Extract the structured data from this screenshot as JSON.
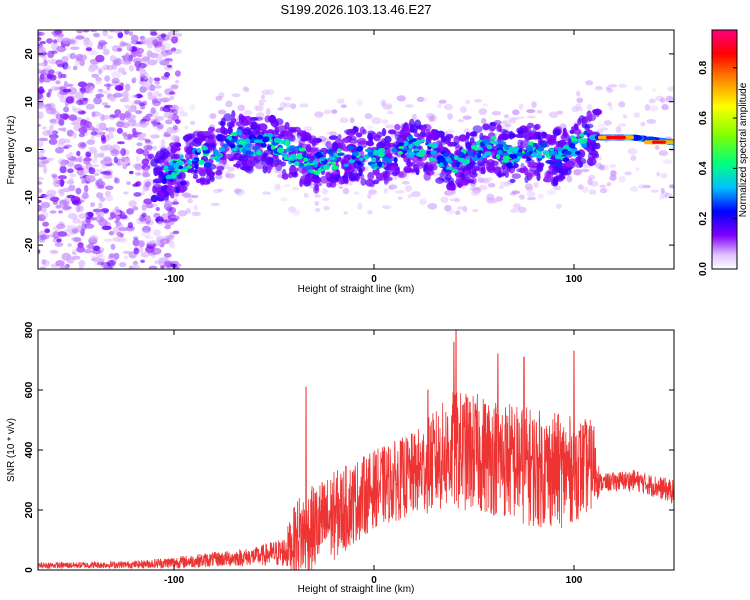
{
  "title": "S199.2026.103.13.46.E27",
  "chart_data": [
    {
      "type": "heatmap",
      "name": "spectrogram",
      "xlabel": "Height of straight line (km)",
      "ylabel": "Frequency (Hz)",
      "xlim": [
        -168,
        150
      ],
      "ylim": [
        -25,
        25
      ],
      "xticks": [
        -100,
        0,
        100
      ],
      "yticks": [
        -20,
        -10,
        0,
        10,
        20
      ],
      "colorbar": {
        "label": "Normalized spectral amplitude",
        "range": [
          0,
          0.95
        ],
        "ticks": [
          0.0,
          0.2,
          0.4,
          0.6,
          0.8
        ]
      },
      "ridge": [
        {
          "x": -108,
          "y": -6
        },
        {
          "x": -100,
          "y": -4
        },
        {
          "x": -90,
          "y": -2
        },
        {
          "x": -80,
          "y": -1
        },
        {
          "x": -72,
          "y": 2
        },
        {
          "x": -60,
          "y": 1
        },
        {
          "x": -50,
          "y": 1
        },
        {
          "x": -40,
          "y": -1
        },
        {
          "x": -30,
          "y": -3
        },
        {
          "x": -20,
          "y": -2
        },
        {
          "x": -10,
          "y": -1
        },
        {
          "x": 0,
          "y": -2
        },
        {
          "x": 10,
          "y": -1
        },
        {
          "x": 20,
          "y": 1
        },
        {
          "x": 30,
          "y": -1
        },
        {
          "x": 40,
          "y": -3
        },
        {
          "x": 50,
          "y": -1
        },
        {
          "x": 60,
          "y": 1
        },
        {
          "x": 70,
          "y": -2
        },
        {
          "x": 80,
          "y": 0
        },
        {
          "x": 90,
          "y": -2
        },
        {
          "x": 100,
          "y": 1
        },
        {
          "x": 110,
          "y": 2.5
        },
        {
          "x": 130,
          "y": 2.5
        },
        {
          "x": 150,
          "y": 1.5
        }
      ]
    },
    {
      "type": "line",
      "name": "snr",
      "xlabel": "Height of straight line (km)",
      "ylabel": "SNR (10 * v/v)",
      "xlim": [
        -168,
        150
      ],
      "ylim": [
        0,
        800
      ],
      "xticks": [
        -100,
        0,
        100
      ],
      "yticks": [
        0,
        200,
        400,
        600,
        800
      ],
      "color": "#ee3333",
      "envelope": [
        {
          "x": -168,
          "base": 15,
          "spread": 10
        },
        {
          "x": -120,
          "base": 18,
          "spread": 12
        },
        {
          "x": -100,
          "base": 25,
          "spread": 20
        },
        {
          "x": -80,
          "base": 35,
          "spread": 25
        },
        {
          "x": -60,
          "base": 45,
          "spread": 30
        },
        {
          "x": -45,
          "base": 60,
          "spread": 50
        },
        {
          "x": -38,
          "base": 110,
          "spread": 140
        },
        {
          "x": -20,
          "base": 180,
          "spread": 150
        },
        {
          "x": 0,
          "base": 270,
          "spread": 130
        },
        {
          "x": 20,
          "base": 320,
          "spread": 140
        },
        {
          "x": 40,
          "base": 400,
          "spread": 200
        },
        {
          "x": 60,
          "base": 380,
          "spread": 200
        },
        {
          "x": 80,
          "base": 340,
          "spread": 200
        },
        {
          "x": 95,
          "base": 330,
          "spread": 190
        },
        {
          "x": 110,
          "base": 350,
          "spread": 150
        },
        {
          "x": 113,
          "base": 290,
          "spread": 30
        },
        {
          "x": 130,
          "base": 300,
          "spread": 35
        },
        {
          "x": 150,
          "base": 260,
          "spread": 40
        }
      ],
      "peaks": [
        {
          "x": -34,
          "y": 610
        },
        {
          "x": 27,
          "y": 600
        },
        {
          "x": 40,
          "y": 760
        },
        {
          "x": 41,
          "y": 820
        },
        {
          "x": 62,
          "y": 720
        },
        {
          "x": 75,
          "y": 710
        },
        {
          "x": 100,
          "y": 730
        }
      ]
    }
  ]
}
